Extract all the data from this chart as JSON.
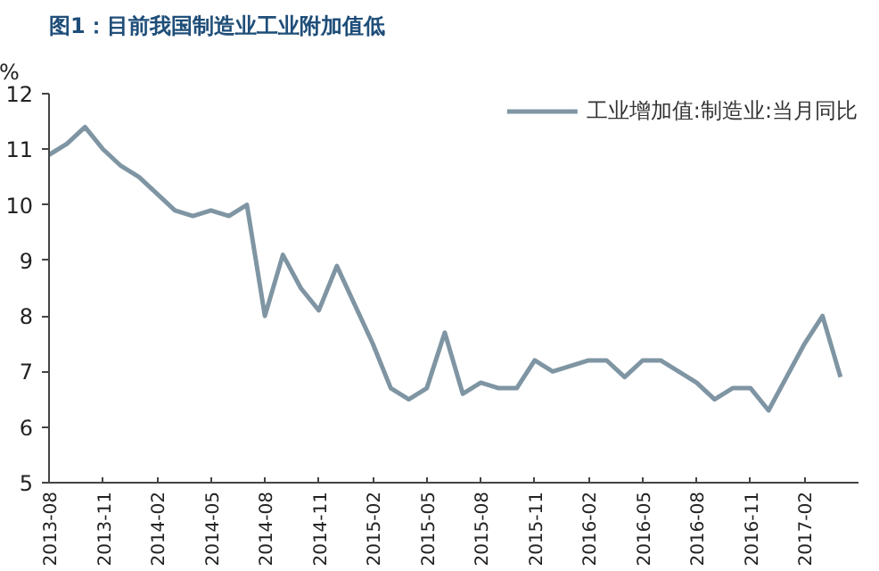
{
  "chart_data": {
    "type": "line",
    "title": "图1：目前我国制造业工业附加值低",
    "ylabel": "%",
    "x": [
      "2013-08",
      "2013-09",
      "2013-10",
      "2013-11",
      "2013-12",
      "2014-01",
      "2014-02",
      "2014-03",
      "2014-04",
      "2014-05",
      "2014-06",
      "2014-07",
      "2014-08",
      "2014-09",
      "2014-10",
      "2014-11",
      "2014-12",
      "2015-01",
      "2015-02",
      "2015-03",
      "2015-04",
      "2015-05",
      "2015-06",
      "2015-07",
      "2015-08",
      "2015-09",
      "2015-10",
      "2015-11",
      "2015-12",
      "2016-01",
      "2016-02",
      "2016-03",
      "2016-04",
      "2016-05",
      "2016-06",
      "2016-07",
      "2016-08",
      "2016-09",
      "2016-10",
      "2016-11",
      "2016-12",
      "2017-01",
      "2017-02",
      "2017-03",
      "2017-04"
    ],
    "series": [
      {
        "name": "工业增加值:制造业:当月同比",
        "color": "#7f95a3",
        "values": [
          10.9,
          11.1,
          11.4,
          11.0,
          10.7,
          10.5,
          10.2,
          9.9,
          9.8,
          9.9,
          9.8,
          10.0,
          8.0,
          9.1,
          8.5,
          8.1,
          8.9,
          8.2,
          7.5,
          6.7,
          6.5,
          6.7,
          7.7,
          6.6,
          6.8,
          6.7,
          6.7,
          7.2,
          7.0,
          7.1,
          7.2,
          7.2,
          6.9,
          7.2,
          7.2,
          7.0,
          6.8,
          6.5,
          6.7,
          6.7,
          6.3,
          6.9,
          7.5,
          8.0,
          6.9
        ]
      }
    ],
    "xlim": [
      "2013-08",
      "2017-05"
    ],
    "xticks": [
      "2013-08",
      "2013-11",
      "2014-02",
      "2014-05",
      "2014-08",
      "2014-11",
      "2015-02",
      "2015-05",
      "2015-08",
      "2015-11",
      "2016-02",
      "2016-05",
      "2016-08",
      "2016-11",
      "2017-02"
    ],
    "ylim": [
      5,
      12
    ],
    "yticks": [
      5,
      6,
      7,
      8,
      9,
      10,
      11,
      12
    ],
    "grid": false,
    "legend": "top right",
    "line_style": "solid",
    "marker": "none"
  }
}
